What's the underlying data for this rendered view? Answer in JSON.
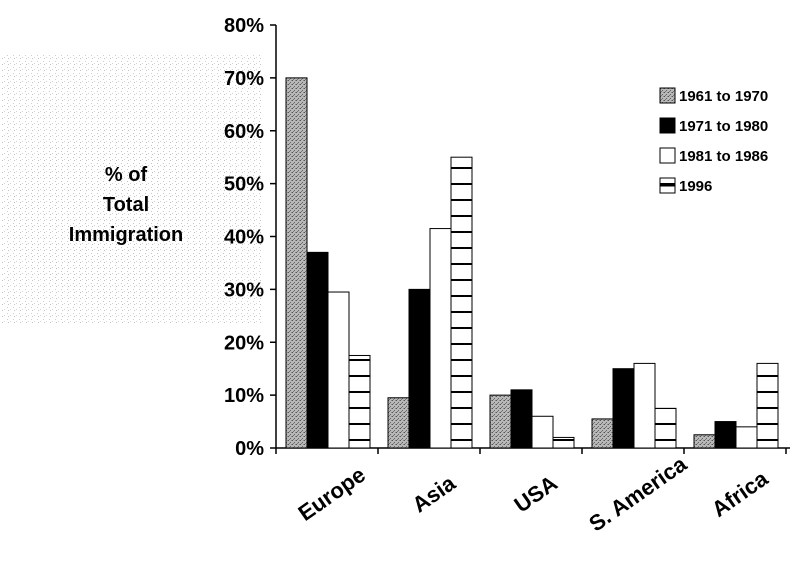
{
  "chart_data": {
    "type": "bar",
    "ylabel": "% of\nTotal\nImmigration",
    "categories": [
      "Europe",
      "Asia",
      "USA",
      "S. America",
      "Africa"
    ],
    "series": [
      {
        "name": "1961 to 1970",
        "values": [
          70,
          9.5,
          10,
          5.5,
          2.5
        ],
        "pattern": "stipple",
        "color": "#9a9a9a"
      },
      {
        "name": "1971 to 1980",
        "values": [
          37,
          30,
          11,
          15,
          5
        ],
        "pattern": "solid",
        "color": "#000000"
      },
      {
        "name": "1981 to 1986",
        "values": [
          29.5,
          41.5,
          6,
          16,
          4
        ],
        "pattern": "hollow",
        "color": "#ffffff"
      },
      {
        "name": "1996",
        "values": [
          17.5,
          55,
          2,
          7.5,
          16
        ],
        "pattern": "horizontal-stripes",
        "color": "#ffffff"
      }
    ],
    "yticks": [
      "0%",
      "10%",
      "20%",
      "30%",
      "40%",
      "50%",
      "60%",
      "70%",
      "80%"
    ],
    "ylim": [
      0,
      80
    ],
    "legend_position": "right",
    "grid": false
  }
}
